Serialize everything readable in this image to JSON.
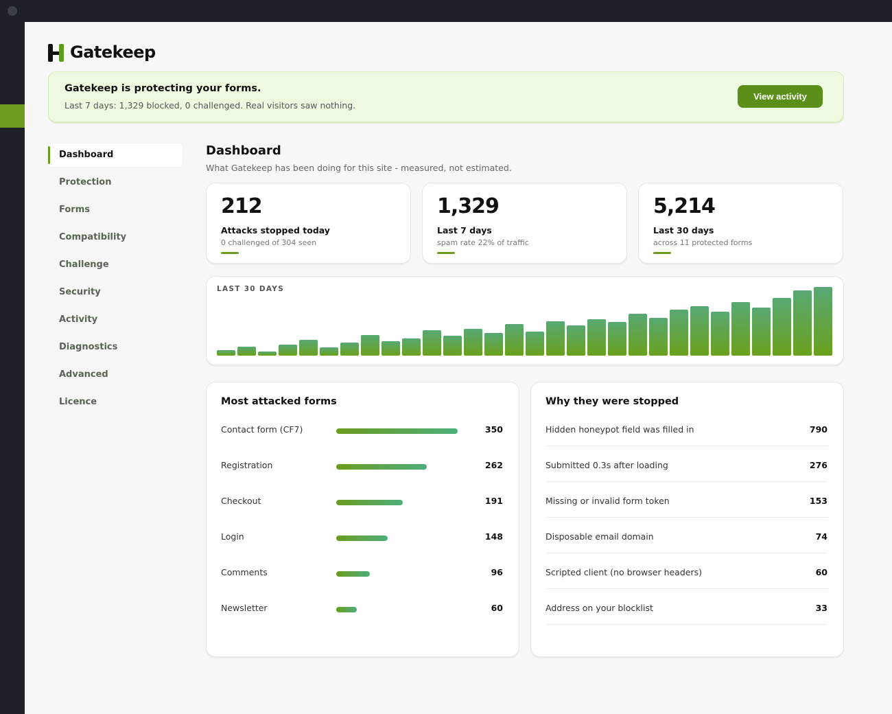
{
  "app": {
    "name": "Gatekeep"
  },
  "banner": {
    "title": "Gatekeep is protecting your forms.",
    "subtitle": "Last 7 days: 1,329 blocked, 0 challenged. Real visitors saw nothing.",
    "button_label": "View activity"
  },
  "nav": {
    "items": [
      {
        "label": "Dashboard",
        "active": true
      },
      {
        "label": "Protection"
      },
      {
        "label": "Forms"
      },
      {
        "label": "Compatibility"
      },
      {
        "label": "Challenge"
      },
      {
        "label": "Security"
      },
      {
        "label": "Activity"
      },
      {
        "label": "Diagnostics"
      },
      {
        "label": "Advanced"
      },
      {
        "label": "Licence"
      }
    ]
  },
  "page": {
    "title": "Dashboard",
    "subtitle": "What Gatekeep has been doing for this site - measured, not estimated."
  },
  "stats": [
    {
      "value": "212",
      "label": "Attacks stopped today",
      "sub": "0 challenged of 304 seen"
    },
    {
      "value": "1,329",
      "label": "Last 7 days",
      "sub": "spam rate 22% of traffic"
    },
    {
      "value": "5,214",
      "label": "Last 30 days",
      "sub": "across 11 protected forms"
    }
  ],
  "chart_data": {
    "type": "bar",
    "title": "LAST 30 DAYS",
    "values": [
      8,
      13,
      6,
      16,
      23,
      12,
      19,
      30,
      21,
      25,
      37,
      29,
      39,
      33,
      46,
      35,
      50,
      44,
      53,
      49,
      61,
      55,
      67,
      72,
      64,
      78,
      70,
      84,
      95,
      100
    ],
    "ylim": [
      0,
      100
    ],
    "colors": {
      "top": "#58a873",
      "bottom": "#6aa11d"
    }
  },
  "forms_panel": {
    "title": "Most attacked forms",
    "rows": [
      {
        "label": "Contact form (CF7)",
        "value": 350
      },
      {
        "label": "Registration",
        "value": 262
      },
      {
        "label": "Checkout",
        "value": 191
      },
      {
        "label": "Login",
        "value": 148
      },
      {
        "label": "Comments",
        "value": 96
      },
      {
        "label": "Newsletter",
        "value": 60
      }
    ]
  },
  "reasons_panel": {
    "title": "Why they were stopped",
    "rows": [
      {
        "label": "Hidden honeypot field was filled in",
        "value": "790"
      },
      {
        "label": "Submitted 0.3s after loading",
        "value": "276"
      },
      {
        "label": "Missing or invalid form token",
        "value": "153"
      },
      {
        "label": "Disposable email domain",
        "value": "74"
      },
      {
        "label": "Scripted client (no browser headers)",
        "value": "60"
      },
      {
        "label": "Address on your blocklist",
        "value": "33"
      }
    ]
  },
  "colors": {
    "accent": "#6b9c1f",
    "button": "#5b8f1a",
    "banner_bg": "#eefae0"
  }
}
